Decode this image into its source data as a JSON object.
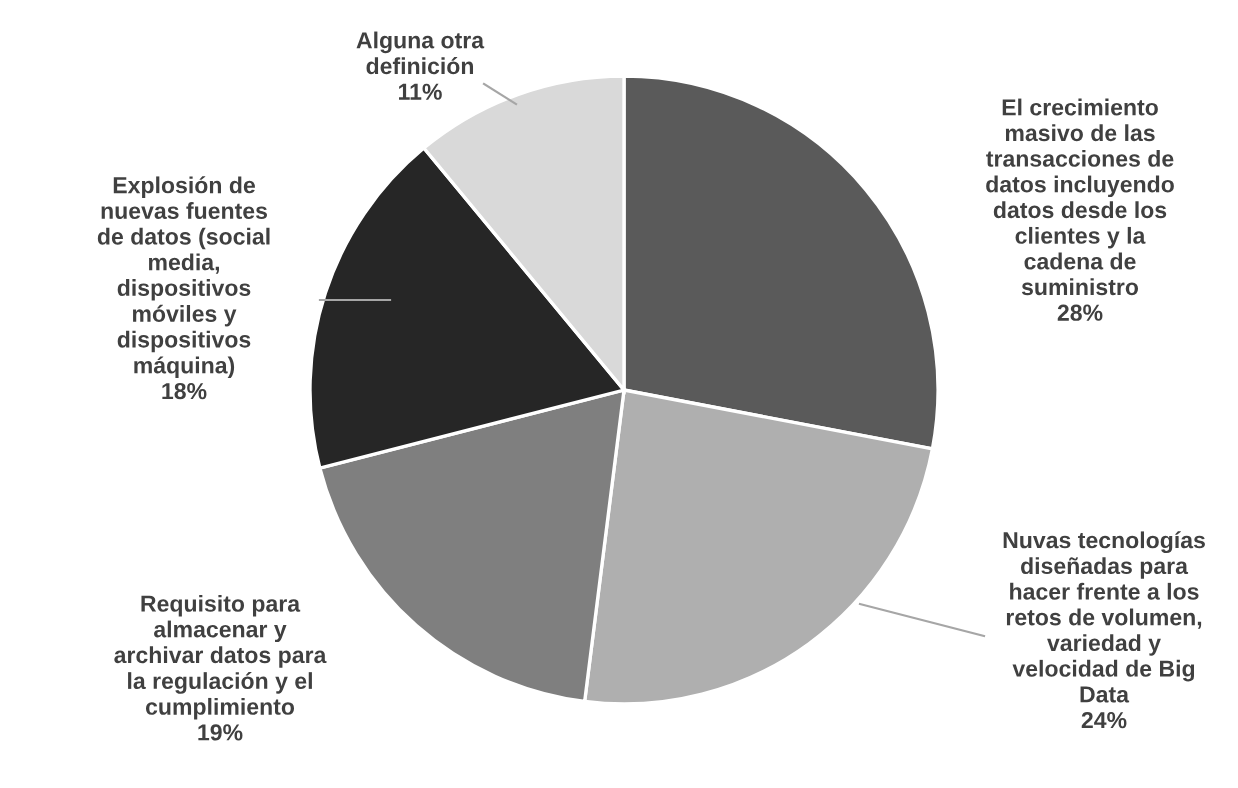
{
  "chart_data": {
    "type": "pie",
    "categories": [
      "El crecimiento masivo de las transacciones de datos incluyendo datos desde los clientes y la cadena de suministro",
      "Nuvas tecnologías diseñadas para hacer frente a los retos de volumen, variedad y velocidad de Big Data",
      "Requisito para almacenar y archivar datos para la regulación y el cumplimiento",
      "Explosión de nuevas fuentes de datos (social media, dispositivos móviles y dispositivos máquina)",
      "Alguna otra definición"
    ],
    "values": [
      28,
      24,
      19,
      18,
      11
    ],
    "value_labels": [
      "28%",
      "24%",
      "19%",
      "18%",
      "11%"
    ],
    "colors": [
      "#5a5a5a",
      "#afafaf",
      "#7f7f7f",
      "#262626",
      "#d9d9d9"
    ],
    "legend": false
  }
}
